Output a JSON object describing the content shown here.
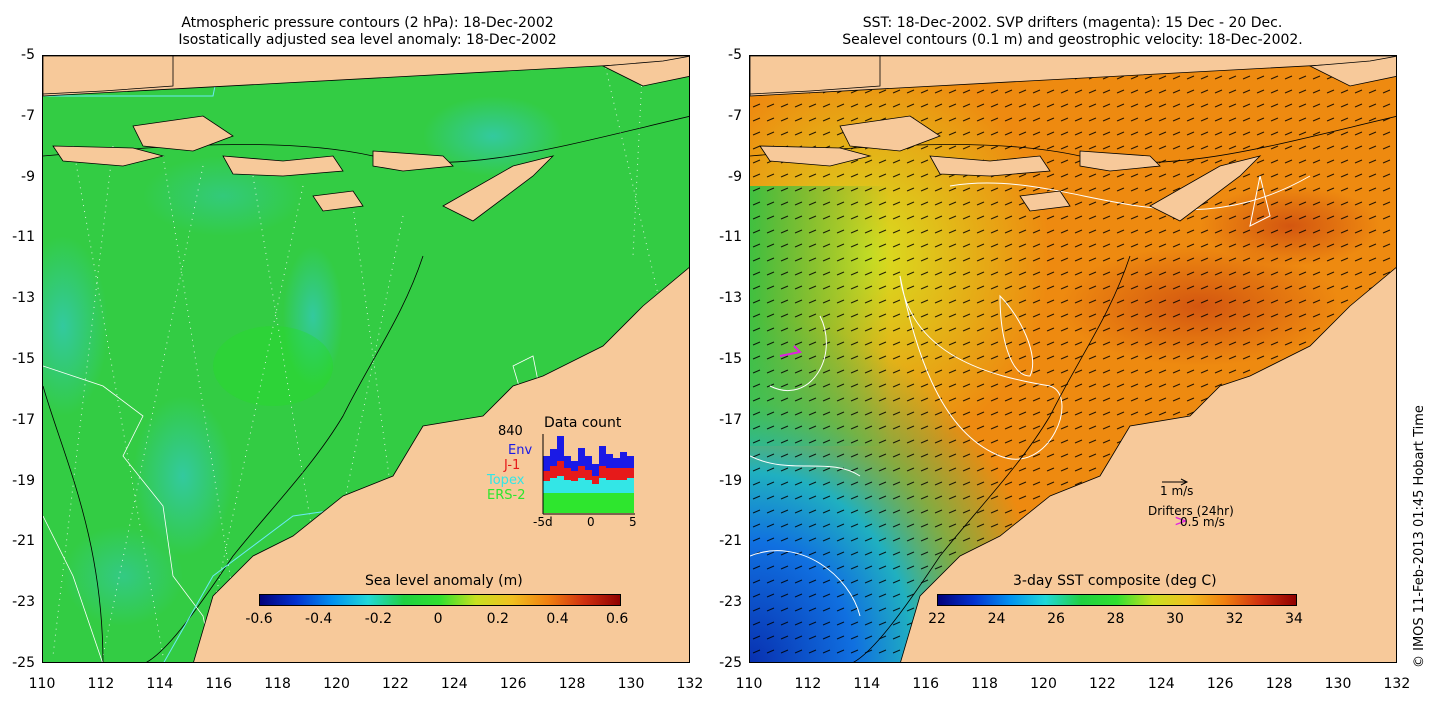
{
  "left_panel": {
    "title_line1": "Atmospheric pressure contours (2 hPa): 18-Dec-2002",
    "title_line2": "Isostatically adjusted sea level anomaly: 18-Dec-2002",
    "y_ticks": [
      "-5",
      "-7",
      "-9",
      "-11",
      "-13",
      "-15",
      "-17",
      "-19",
      "-21",
      "-23",
      "-25"
    ],
    "x_ticks": [
      "110",
      "112",
      "114",
      "116",
      "118",
      "120",
      "122",
      "124",
      "126",
      "128",
      "130",
      "132"
    ],
    "colorbar": {
      "label": "Sea level anomaly (m)",
      "ticks": [
        "-0.6",
        "-0.4",
        "-0.2",
        "0",
        "0.2",
        "0.4",
        "0.6"
      ]
    },
    "data_count": {
      "title": "Data count",
      "total": "840",
      "legend": [
        {
          "name": "Env",
          "color": "#1a1ae6"
        },
        {
          "name": "J-1",
          "color": "#e61a1a"
        },
        {
          "name": "Topex",
          "color": "#33e6e6"
        },
        {
          "name": "ERS-2",
          "color": "#2ee62e"
        }
      ],
      "x_ticks": [
        "-5d",
        "0",
        "5"
      ]
    }
  },
  "right_panel": {
    "title_line1": "SST: 18-Dec-2002. SVP drifters (magenta): 15 Dec - 20 Dec.",
    "title_line2": "Sealevel contours (0.1 m) and geostrophic velocity: 18-Dec-2002.",
    "y_ticks": [
      "-5",
      "-7",
      "-9",
      "-11",
      "-13",
      "-15",
      "-17",
      "-19",
      "-21",
      "-23",
      "-25"
    ],
    "x_ticks": [
      "110",
      "112",
      "114",
      "116",
      "118",
      "120",
      "122",
      "124",
      "126",
      "128",
      "130",
      "132"
    ],
    "colorbar": {
      "label": "3-day SST composite (deg C)",
      "ticks": [
        "22",
        "24",
        "26",
        "28",
        "30",
        "32",
        "34"
      ]
    },
    "velocity_key": "1 m/s",
    "drifters_label": "Drifters (24hr)",
    "drifters_key": "0.5 m/s"
  },
  "credit": "© IMOS 11-Feb-2013 01:45 Hobart Time",
  "colors": {
    "land": "#f7c99a",
    "ocean_green": "#3cc83c",
    "sst_orange": "#ee8a10"
  }
}
